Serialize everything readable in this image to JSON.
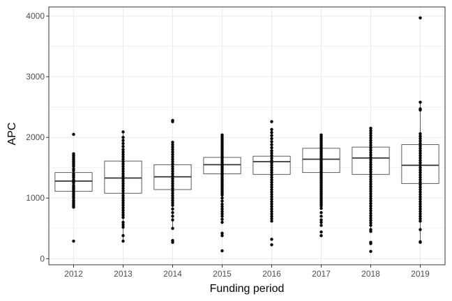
{
  "chart_data": {
    "type": "box",
    "xlabel": "Funding period",
    "ylabel": "APC",
    "ylim": [
      -100,
      4150
    ],
    "yticks": [
      0,
      1000,
      2000,
      3000,
      4000
    ],
    "grid": true,
    "theme_colors": {
      "grid": "#ebebeb",
      "panel_border": "#333333",
      "box_stroke": "#333333",
      "point": "#000000"
    },
    "categories": [
      "2012",
      "2013",
      "2014",
      "2015",
      "2016",
      "2017",
      "2018",
      "2019"
    ],
    "boxes": [
      {
        "category": "2012",
        "q1": 1110,
        "median": 1280,
        "q3": 1420,
        "whisker_low": 850,
        "whisker_high": 1730
      },
      {
        "category": "2013",
        "q1": 1080,
        "median": 1330,
        "q3": 1610,
        "whisker_low": 290,
        "whisker_high": 2090
      },
      {
        "category": "2014",
        "q1": 1140,
        "median": 1350,
        "q3": 1550,
        "whisker_low": 500,
        "whisker_high": 1920
      },
      {
        "category": "2015",
        "q1": 1400,
        "median": 1550,
        "q3": 1670,
        "whisker_low": 1000,
        "whisker_high": 2040
      },
      {
        "category": "2016",
        "q1": 1390,
        "median": 1600,
        "q3": 1690,
        "whisker_low": 950,
        "whisker_high": 2130
      },
      {
        "category": "2017",
        "q1": 1420,
        "median": 1640,
        "q3": 1820,
        "whisker_low": 830,
        "whisker_high": 2040
      },
      {
        "category": "2018",
        "q1": 1390,
        "median": 1660,
        "q3": 1840,
        "whisker_low": 480,
        "whisker_high": 2150
      },
      {
        "category": "2019",
        "q1": 1240,
        "median": 1540,
        "q3": 1880,
        "whisker_low": 270,
        "whisker_high": 2580
      }
    ],
    "points": [
      {
        "category": "2012",
        "values": [
          2050,
          1730,
          1700,
          1670,
          1640,
          1610,
          1580,
          1550,
          1520,
          1480,
          1450,
          1400,
          1370,
          1340,
          1300,
          1270,
          1250,
          1210,
          1180,
          1150,
          1120,
          1090,
          1060,
          1030,
          1000,
          960,
          930,
          900,
          870,
          850,
          290
        ]
      },
      {
        "category": "2013",
        "values": [
          2090,
          2000,
          1950,
          1900,
          1850,
          1800,
          1760,
          1720,
          1680,
          1640,
          1600,
          1560,
          1520,
          1480,
          1440,
          1400,
          1360,
          1320,
          1280,
          1240,
          1200,
          1160,
          1120,
          1080,
          1040,
          1000,
          960,
          920,
          880,
          840,
          800,
          760,
          720,
          680,
          600,
          560,
          520,
          380,
          290
        ]
      },
      {
        "category": "2014",
        "values": [
          2280,
          2260,
          1920,
          1880,
          1840,
          1800,
          1760,
          1720,
          1680,
          1640,
          1600,
          1560,
          1520,
          1480,
          1440,
          1400,
          1360,
          1320,
          1280,
          1240,
          1200,
          1160,
          1120,
          1080,
          1040,
          1000,
          960,
          920,
          880,
          820,
          760,
          700,
          640,
          500,
          300,
          270
        ]
      },
      {
        "category": "2015",
        "values": [
          2040,
          2010,
          1980,
          1950,
          1920,
          1890,
          1860,
          1830,
          1800,
          1770,
          1740,
          1710,
          1680,
          1650,
          1620,
          1590,
          1560,
          1530,
          1500,
          1470,
          1440,
          1410,
          1380,
          1350,
          1320,
          1290,
          1260,
          1230,
          1200,
          1170,
          1140,
          1110,
          1080,
          1050,
          1000,
          950,
          900,
          860,
          820,
          780,
          740,
          700,
          650,
          600,
          420,
          380,
          130
        ]
      },
      {
        "category": "2016",
        "values": [
          2260,
          2130,
          2080,
          2030,
          1980,
          1930,
          1880,
          1830,
          1780,
          1740,
          1700,
          1660,
          1620,
          1580,
          1540,
          1500,
          1460,
          1420,
          1380,
          1340,
          1300,
          1260,
          1220,
          1180,
          1140,
          1100,
          1060,
          1020,
          980,
          940,
          900,
          860,
          820,
          780,
          740,
          700,
          660,
          620,
          320,
          230
        ]
      },
      {
        "category": "2017",
        "values": [
          2040,
          2010,
          1980,
          1950,
          1920,
          1890,
          1860,
          1830,
          1800,
          1770,
          1740,
          1710,
          1680,
          1650,
          1620,
          1590,
          1560,
          1530,
          1500,
          1470,
          1440,
          1410,
          1380,
          1350,
          1320,
          1290,
          1260,
          1230,
          1200,
          1170,
          1140,
          1110,
          1080,
          1050,
          1020,
          990,
          960,
          930,
          900,
          870,
          830,
          760,
          700,
          640,
          600,
          550,
          440,
          380
        ]
      },
      {
        "category": "2018",
        "values": [
          2150,
          2110,
          2070,
          2030,
          1990,
          1950,
          1910,
          1870,
          1830,
          1790,
          1750,
          1710,
          1670,
          1630,
          1590,
          1550,
          1510,
          1470,
          1430,
          1390,
          1350,
          1310,
          1270,
          1230,
          1190,
          1150,
          1110,
          1070,
          1030,
          990,
          950,
          910,
          870,
          830,
          790,
          750,
          710,
          670,
          630,
          590,
          550,
          480,
          450,
          270,
          250,
          120
        ]
      },
      {
        "category": "2019",
        "values": [
          3970,
          2580,
          2470,
          2450,
          2060,
          2020,
          1980,
          1940,
          1900,
          1860,
          1820,
          1780,
          1740,
          1700,
          1660,
          1620,
          1580,
          1540,
          1500,
          1460,
          1420,
          1380,
          1340,
          1300,
          1260,
          1220,
          1180,
          1140,
          1100,
          1060,
          1020,
          980,
          940,
          900,
          860,
          820,
          780,
          740,
          700,
          660,
          620,
          480,
          280,
          270
        ]
      }
    ]
  }
}
